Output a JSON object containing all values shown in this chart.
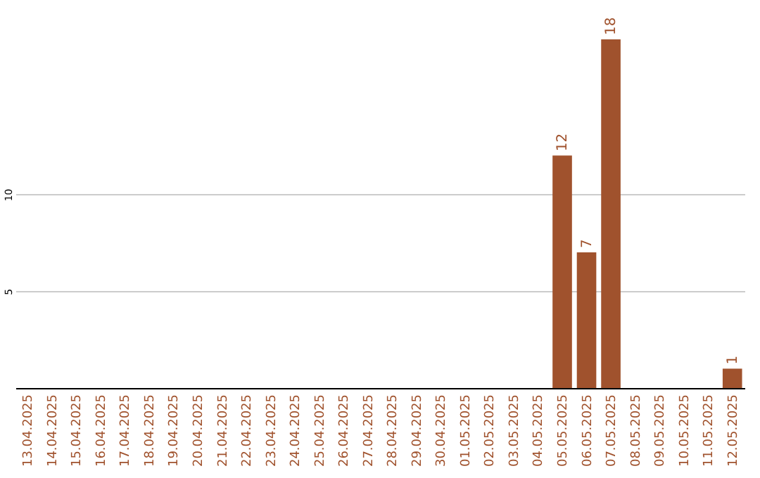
{
  "chart_data": {
    "type": "bar",
    "categories": [
      "13.04.2025",
      "14.04.2025",
      "15.04.2025",
      "16.04.2025",
      "17.04.2025",
      "18.04.2025",
      "19.04.2025",
      "20.04.2025",
      "21.04.2025",
      "22.04.2025",
      "23.04.2025",
      "24.04.2025",
      "25.04.2025",
      "26.04.2025",
      "27.04.2025",
      "28.04.2025",
      "29.04.2025",
      "30.04.2025",
      "01.05.2025",
      "02.05.2025",
      "03.05.2025",
      "04.05.2025",
      "05.05.2025",
      "06.05.2025",
      "07.05.2025",
      "08.05.2025",
      "09.05.2025",
      "10.05.2025",
      "11.05.2025",
      "12.05.2025"
    ],
    "values": [
      0,
      0,
      0,
      0,
      0,
      0,
      0,
      0,
      0,
      0,
      0,
      0,
      0,
      0,
      0,
      0,
      0,
      0,
      0,
      0,
      0,
      0,
      12,
      7,
      18,
      0,
      0,
      0,
      0,
      1
    ],
    "value_labels": [
      null,
      null,
      null,
      null,
      null,
      null,
      null,
      null,
      null,
      null,
      null,
      null,
      null,
      null,
      null,
      null,
      null,
      null,
      null,
      null,
      null,
      null,
      "12",
      "7",
      "18",
      null,
      null,
      null,
      null,
      "1"
    ],
    "color": "#a0522d",
    "ylim": [
      0,
      18
    ],
    "yticks": [
      5,
      10
    ],
    "grid": "y"
  }
}
